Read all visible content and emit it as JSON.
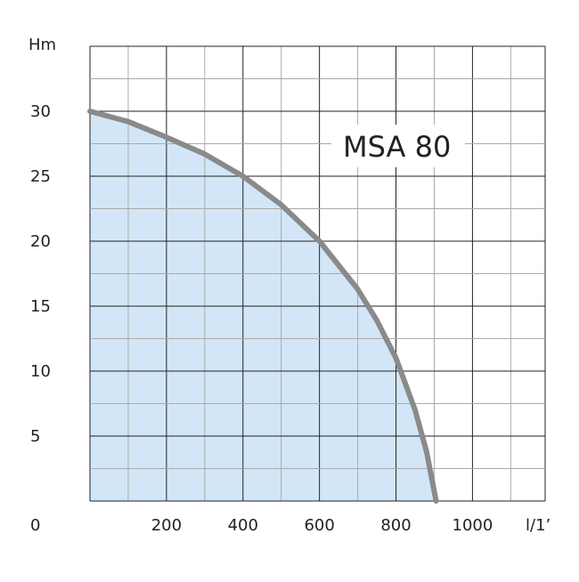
{
  "chart_data": {
    "type": "area",
    "title": "MSA 80",
    "xlabel": "l/1’",
    "ylabel": "Hm",
    "xlim": [
      0,
      1190
    ],
    "ylim": [
      0,
      35
    ],
    "x_ticks": [
      "200",
      "400",
      "600",
      "800",
      "1000"
    ],
    "x_tick_values": [
      200,
      400,
      600,
      800,
      1000
    ],
    "y_ticks": [
      "0",
      "5",
      "10",
      "15",
      "20",
      "25",
      "30"
    ],
    "y_tick_values": [
      0,
      5,
      10,
      15,
      20,
      25,
      30
    ],
    "grid": true,
    "colors": {
      "fill": "#d3e6f7",
      "curve": "#8a8a8a",
      "grid_major": "#222222",
      "grid_minor": "#aaaaaa"
    },
    "series": [
      {
        "x": [
          0,
          100,
          200,
          300,
          400,
          500,
          600,
          700,
          750,
          800,
          850,
          880,
          905
        ],
        "y": [
          30,
          29.2,
          28,
          26.7,
          25,
          22.8,
          20,
          16.3,
          13.9,
          11,
          7,
          3.8,
          0
        ]
      }
    ]
  }
}
